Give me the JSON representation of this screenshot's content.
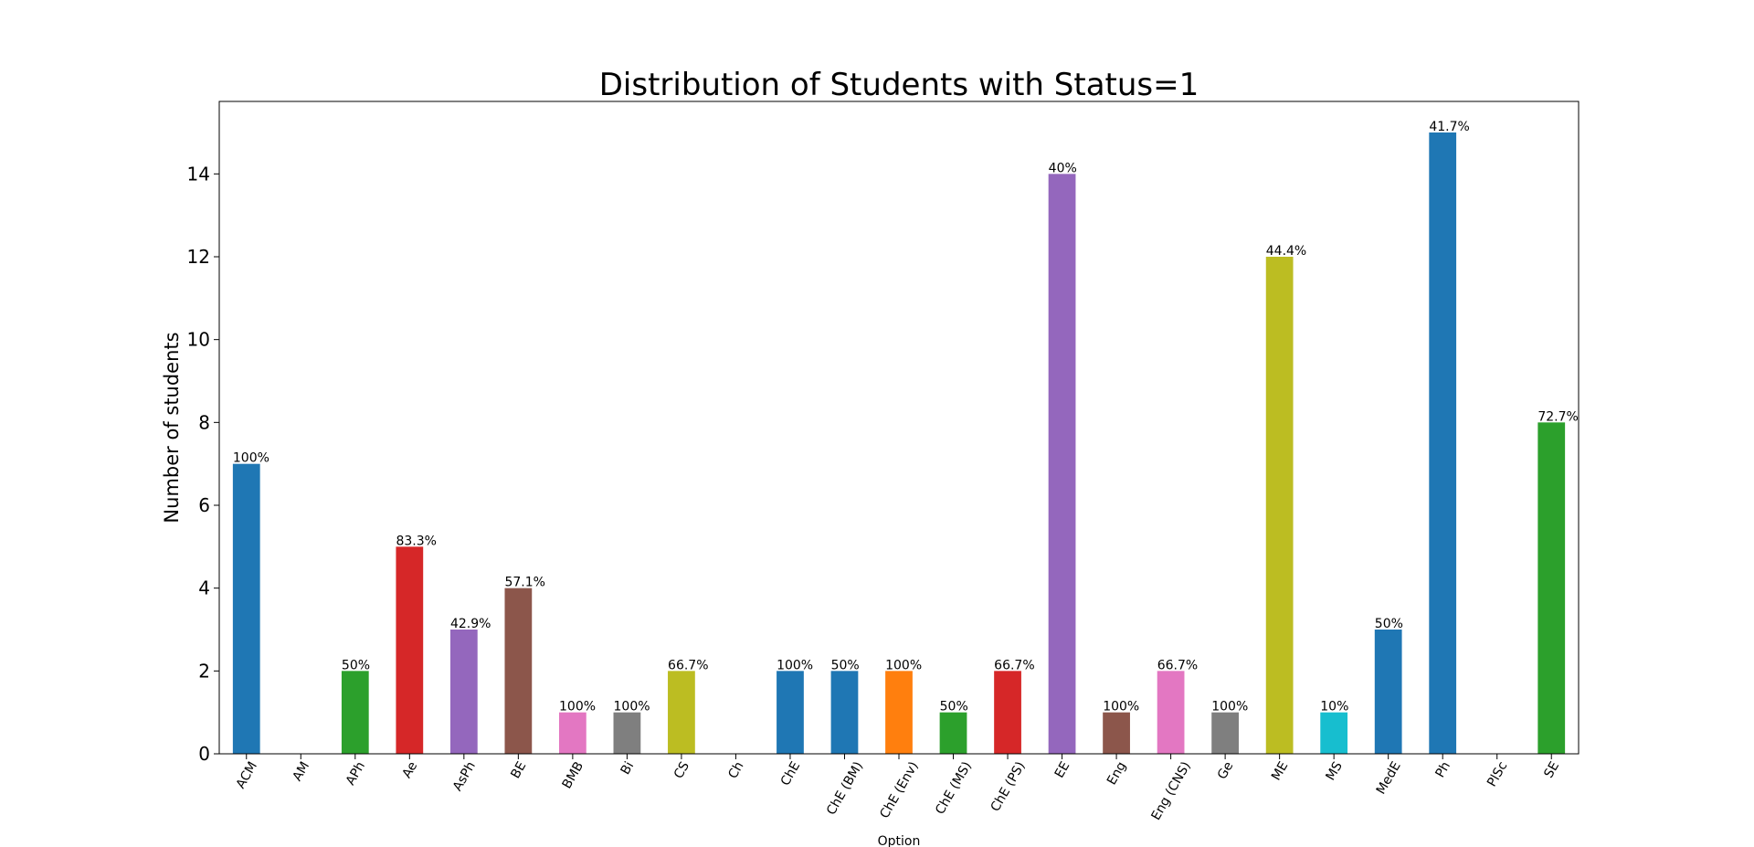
{
  "chart_data": {
    "type": "bar",
    "title": "Distribution of Students with Status=1",
    "x_label": "Option",
    "y_label": "Number of students",
    "categories": [
      "ACM",
      "AM",
      "APh",
      "Ae",
      "AsPh",
      "BE",
      "BMB",
      "Bi",
      "CS",
      "Ch",
      "ChE",
      "ChE (BM)",
      "ChE (Env)",
      "ChE (MS)",
      "ChE (PS)",
      "EE",
      "Eng",
      "Eng (CNS)",
      "Ge",
      "ME",
      "MS",
      "MedE",
      "Ph",
      "PlSc",
      "SE"
    ],
    "values": [
      7,
      0,
      2,
      5,
      3,
      4,
      1,
      1,
      2,
      0,
      2,
      2,
      2,
      1,
      2,
      14,
      1,
      2,
      1,
      12,
      1,
      3,
      15,
      0,
      8
    ],
    "colors": [
      "#1f77b4",
      "#ff7f0e",
      "#2ca02c",
      "#d62728",
      "#9467bd",
      "#8c564b",
      "#e377c2",
      "#7f7f7f",
      "#bcbd22",
      "#17becf",
      "#1f77b4",
      "#1f77b4",
      "#ff7f0e",
      "#2ca02c",
      "#d62728",
      "#9467bd",
      "#8c564b",
      "#e377c2",
      "#7f7f7f",
      "#bcbd22",
      "#17becf",
      "#1f77b4",
      "#1f77b4",
      "#ff7f0e",
      "#2ca02c"
    ],
    "percentages": {
      "values": [
        100,
        null,
        50,
        83.3,
        42.9,
        57.1,
        100,
        100,
        66.7,
        null,
        100,
        50,
        100,
        50,
        66.7,
        40,
        100,
        66.7,
        100,
        44.4,
        10,
        50,
        41.7,
        null,
        72.7
      ],
      "labels": [
        "100%",
        null,
        "50%",
        "83.3%",
        "42.9%",
        "57.1%",
        "100%",
        "100%",
        "66.7%",
        null,
        "100%",
        "50%",
        "100%",
        "50%",
        "66.7%",
        "40%",
        "100%",
        "66.7%",
        "100%",
        "44.4%",
        "10%",
        "50%",
        "41.7%",
        null,
        "72.7%"
      ]
    },
    "ylim": [
      0,
      15.75
    ],
    "yticks": [
      0,
      2,
      4,
      6,
      8,
      10,
      12,
      14
    ],
    "grid": false
  }
}
